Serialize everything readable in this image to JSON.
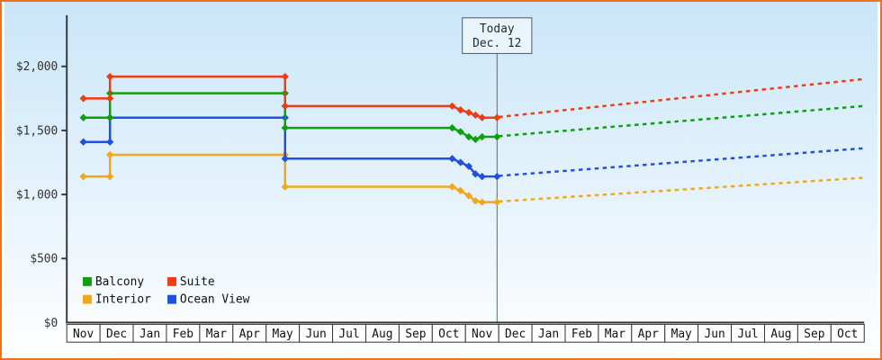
{
  "frame": {
    "border_color": "#ef7021",
    "bg_gradient_top": "#cae6f9",
    "bg_gradient_mid": "#e6f3fc",
    "bg_gradient_bottom": "#ffffff"
  },
  "chart_data": {
    "type": "line",
    "title": "",
    "units": "USD",
    "ylim": [
      0,
      2400
    ],
    "y_ticks": [
      {
        "value": 0,
        "label": "$0"
      },
      {
        "value": 500,
        "label": "$500"
      },
      {
        "value": 1000,
        "label": "$1,000"
      },
      {
        "value": 1500,
        "label": "$1,500"
      },
      {
        "value": 2000,
        "label": "$2,000"
      }
    ],
    "x_months": [
      "Nov",
      "Dec",
      "Jan",
      "Feb",
      "Mar",
      "Apr",
      "May",
      "Jun",
      "Jul",
      "Aug",
      "Sep",
      "Oct",
      "Nov",
      "Dec",
      "Jan",
      "Feb",
      "Mar",
      "Apr",
      "May",
      "Jun",
      "Jul",
      "Aug",
      "Sep",
      "Oct"
    ],
    "today": {
      "line1": "Today",
      "line2": "Dec. 12",
      "x_month": 12.45
    },
    "series": [
      {
        "name": "Interior",
        "color": "#f2a71b",
        "history": [
          [
            0,
            1140
          ],
          [
            0.8,
            1140
          ],
          [
            0.8,
            1310
          ],
          [
            6.07,
            1310
          ],
          [
            6.07,
            1060
          ],
          [
            11.1,
            1060
          ],
          [
            11.35,
            1030
          ],
          [
            11.6,
            990
          ],
          [
            11.8,
            950
          ],
          [
            12.0,
            940
          ],
          [
            12.45,
            940
          ]
        ],
        "forecast": [
          [
            12.5,
            945
          ],
          [
            23.45,
            1130
          ]
        ]
      },
      {
        "name": "Ocean View",
        "color": "#2050e0",
        "history": [
          [
            0,
            1410
          ],
          [
            0.8,
            1410
          ],
          [
            0.8,
            1600
          ],
          [
            6.07,
            1600
          ],
          [
            6.07,
            1280
          ],
          [
            11.1,
            1280
          ],
          [
            11.35,
            1250
          ],
          [
            11.6,
            1220
          ],
          [
            11.8,
            1160
          ],
          [
            12.0,
            1140
          ],
          [
            12.45,
            1140
          ]
        ],
        "forecast": [
          [
            12.5,
            1145
          ],
          [
            23.45,
            1360
          ]
        ]
      },
      {
        "name": "Balcony",
        "color": "#0da00d",
        "history": [
          [
            0,
            1600
          ],
          [
            0.8,
            1600
          ],
          [
            0.8,
            1790
          ],
          [
            6.07,
            1790
          ],
          [
            6.07,
            1520
          ],
          [
            11.1,
            1520
          ],
          [
            11.35,
            1490
          ],
          [
            11.6,
            1450
          ],
          [
            11.8,
            1430
          ],
          [
            12.0,
            1450
          ],
          [
            12.45,
            1450
          ]
        ],
        "forecast": [
          [
            12.5,
            1455
          ],
          [
            23.45,
            1690
          ]
        ]
      },
      {
        "name": "Suite",
        "color": "#ee3d12",
        "history": [
          [
            0,
            1750
          ],
          [
            0.8,
            1750
          ],
          [
            0.8,
            1920
          ],
          [
            6.07,
            1920
          ],
          [
            6.07,
            1690
          ],
          [
            11.1,
            1690
          ],
          [
            11.35,
            1660
          ],
          [
            11.6,
            1640
          ],
          [
            11.8,
            1620
          ],
          [
            12.0,
            1600
          ],
          [
            12.45,
            1600
          ]
        ],
        "forecast": [
          [
            12.5,
            1605
          ],
          [
            23.45,
            1900
          ]
        ]
      }
    ],
    "legend_rows": [
      [
        "Balcony",
        "Suite"
      ],
      [
        "Interior",
        "Ocean View"
      ]
    ],
    "legend_position": "bottom-left",
    "grid": false,
    "history_style": "solid-step-with-diamond-markers",
    "forecast_style": "dashed"
  }
}
